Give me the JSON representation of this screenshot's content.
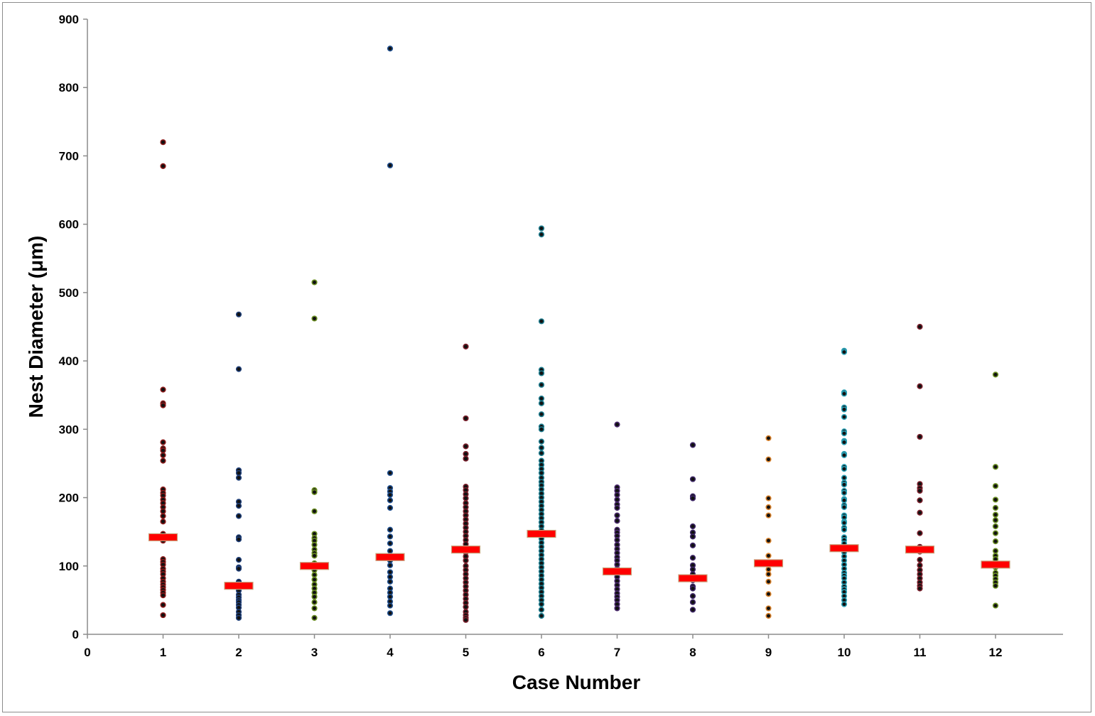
{
  "chart_data": {
    "type": "scatter",
    "title": "",
    "xlabel": "Case Number",
    "ylabel": "Nest Diameter (μm)",
    "xlim": [
      0,
      12.5
    ],
    "ylim": [
      0,
      900
    ],
    "x_ticks": [
      "0",
      "1",
      "2",
      "3",
      "4",
      "5",
      "6",
      "7",
      "8",
      "9",
      "10",
      "11",
      "12"
    ],
    "y_ticks": [
      "0",
      "100",
      "200",
      "300",
      "400",
      "500",
      "600",
      "700",
      "800",
      "900"
    ],
    "grid": false,
    "legend": "none",
    "mean_marker_color": "#ff0000",
    "series": [
      {
        "x": 1,
        "color": "#8b1a1a",
        "mean": 142,
        "values": [
          720,
          685,
          358,
          338,
          335,
          281,
          272,
          269,
          262,
          254,
          212,
          207,
          203,
          197,
          192,
          186,
          180,
          173,
          165,
          147,
          141,
          137,
          110,
          106,
          102,
          96,
          92,
          88,
          82,
          77,
          73,
          69,
          65,
          61,
          57,
          43,
          28
        ]
      },
      {
        "x": 2,
        "color": "#1f3f78",
        "mean": 71,
        "values": [
          468,
          388,
          240,
          236,
          229,
          194,
          188,
          173,
          142,
          139,
          109,
          98,
          96,
          77,
          74,
          68,
          64,
          58,
          54,
          50,
          47,
          43,
          39,
          33,
          28,
          24
        ]
      },
      {
        "x": 3,
        "color": "#6b8e23",
        "mean": 100,
        "values": [
          515,
          462,
          211,
          208,
          180,
          147,
          141,
          137,
          131,
          124,
          119,
          115,
          104,
          98,
          94,
          87,
          80,
          73,
          67,
          61,
          55,
          47,
          38,
          24
        ]
      },
      {
        "x": 4,
        "color": "#1f4f8f",
        "mean": 113,
        "values": [
          857,
          686,
          236,
          214,
          209,
          204,
          196,
          185,
          153,
          143,
          133,
          122,
          114,
          108,
          101,
          91,
          84,
          77,
          67,
          61,
          55,
          48,
          42,
          31
        ]
      },
      {
        "x": 5,
        "color": "#7a1f2b",
        "mean": 124,
        "values": [
          421,
          316,
          275,
          264,
          257,
          216,
          211,
          205,
          199,
          192,
          186,
          180,
          174,
          168,
          162,
          156,
          150,
          144,
          138,
          132,
          126,
          120,
          114,
          108,
          100,
          94,
          88,
          82,
          76,
          70,
          64,
          58,
          52,
          46,
          40,
          33,
          28,
          24,
          21
        ]
      },
      {
        "x": 6,
        "color": "#1b7a8c",
        "mean": 147,
        "values": [
          594,
          585,
          458,
          387,
          382,
          365,
          345,
          338,
          322,
          304,
          300,
          282,
          273,
          265,
          254,
          248,
          242,
          236,
          229,
          223,
          218,
          212,
          206,
          200,
          194,
          188,
          182,
          176,
          170,
          164,
          158,
          152,
          146,
          140,
          134,
          128,
          122,
          116,
          110,
          104,
          98,
          92,
          86,
          80,
          74,
          68,
          62,
          56,
          50,
          44,
          36,
          27
        ]
      },
      {
        "x": 7,
        "color": "#4b2a6e",
        "mean": 92,
        "values": [
          307,
          215,
          210,
          204,
          197,
          190,
          185,
          174,
          166,
          153,
          149,
          144,
          138,
          131,
          125,
          119,
          113,
          108,
          102,
          96,
          90,
          84,
          78,
          72,
          66,
          60,
          55,
          50,
          44,
          38
        ]
      },
      {
        "x": 8,
        "color": "#3d2566",
        "mean": 82,
        "values": [
          277,
          227,
          202,
          199,
          158,
          149,
          143,
          130,
          112,
          101,
          95,
          88,
          79,
          70,
          67,
          56,
          47,
          36
        ]
      },
      {
        "x": 9,
        "color": "#d9822b",
        "mean": 104,
        "values": [
          287,
          256,
          199,
          186,
          174,
          137,
          115,
          103,
          95,
          88,
          77,
          59,
          38,
          27
        ]
      },
      {
        "x": 10,
        "color": "#2aa0b5",
        "mean": 126,
        "values": [
          415,
          413,
          354,
          352,
          332,
          329,
          318,
          297,
          294,
          283,
          281,
          264,
          262,
          245,
          242,
          229,
          222,
          219,
          210,
          207,
          198,
          196,
          189,
          186,
          174,
          171,
          165,
          163,
          156,
          153,
          142,
          138,
          133,
          126,
          120,
          114,
          108,
          102,
          96,
          90,
          86,
          82,
          76,
          70,
          66,
          62,
          56,
          50,
          44
        ]
      },
      {
        "x": 11,
        "color": "#7a1f2b",
        "mean": 124,
        "values": [
          450,
          363,
          289,
          220,
          214,
          210,
          196,
          178,
          148,
          128,
          121,
          109,
          101,
          94,
          88,
          82,
          76,
          71,
          67
        ]
      },
      {
        "x": 12,
        "color": "#6b8e23",
        "mean": 102,
        "values": [
          380,
          245,
          217,
          197,
          185,
          175,
          167,
          158,
          148,
          136,
          122,
          115,
          110,
          104,
          98,
          90,
          86,
          81,
          76,
          71,
          42
        ]
      }
    ]
  }
}
